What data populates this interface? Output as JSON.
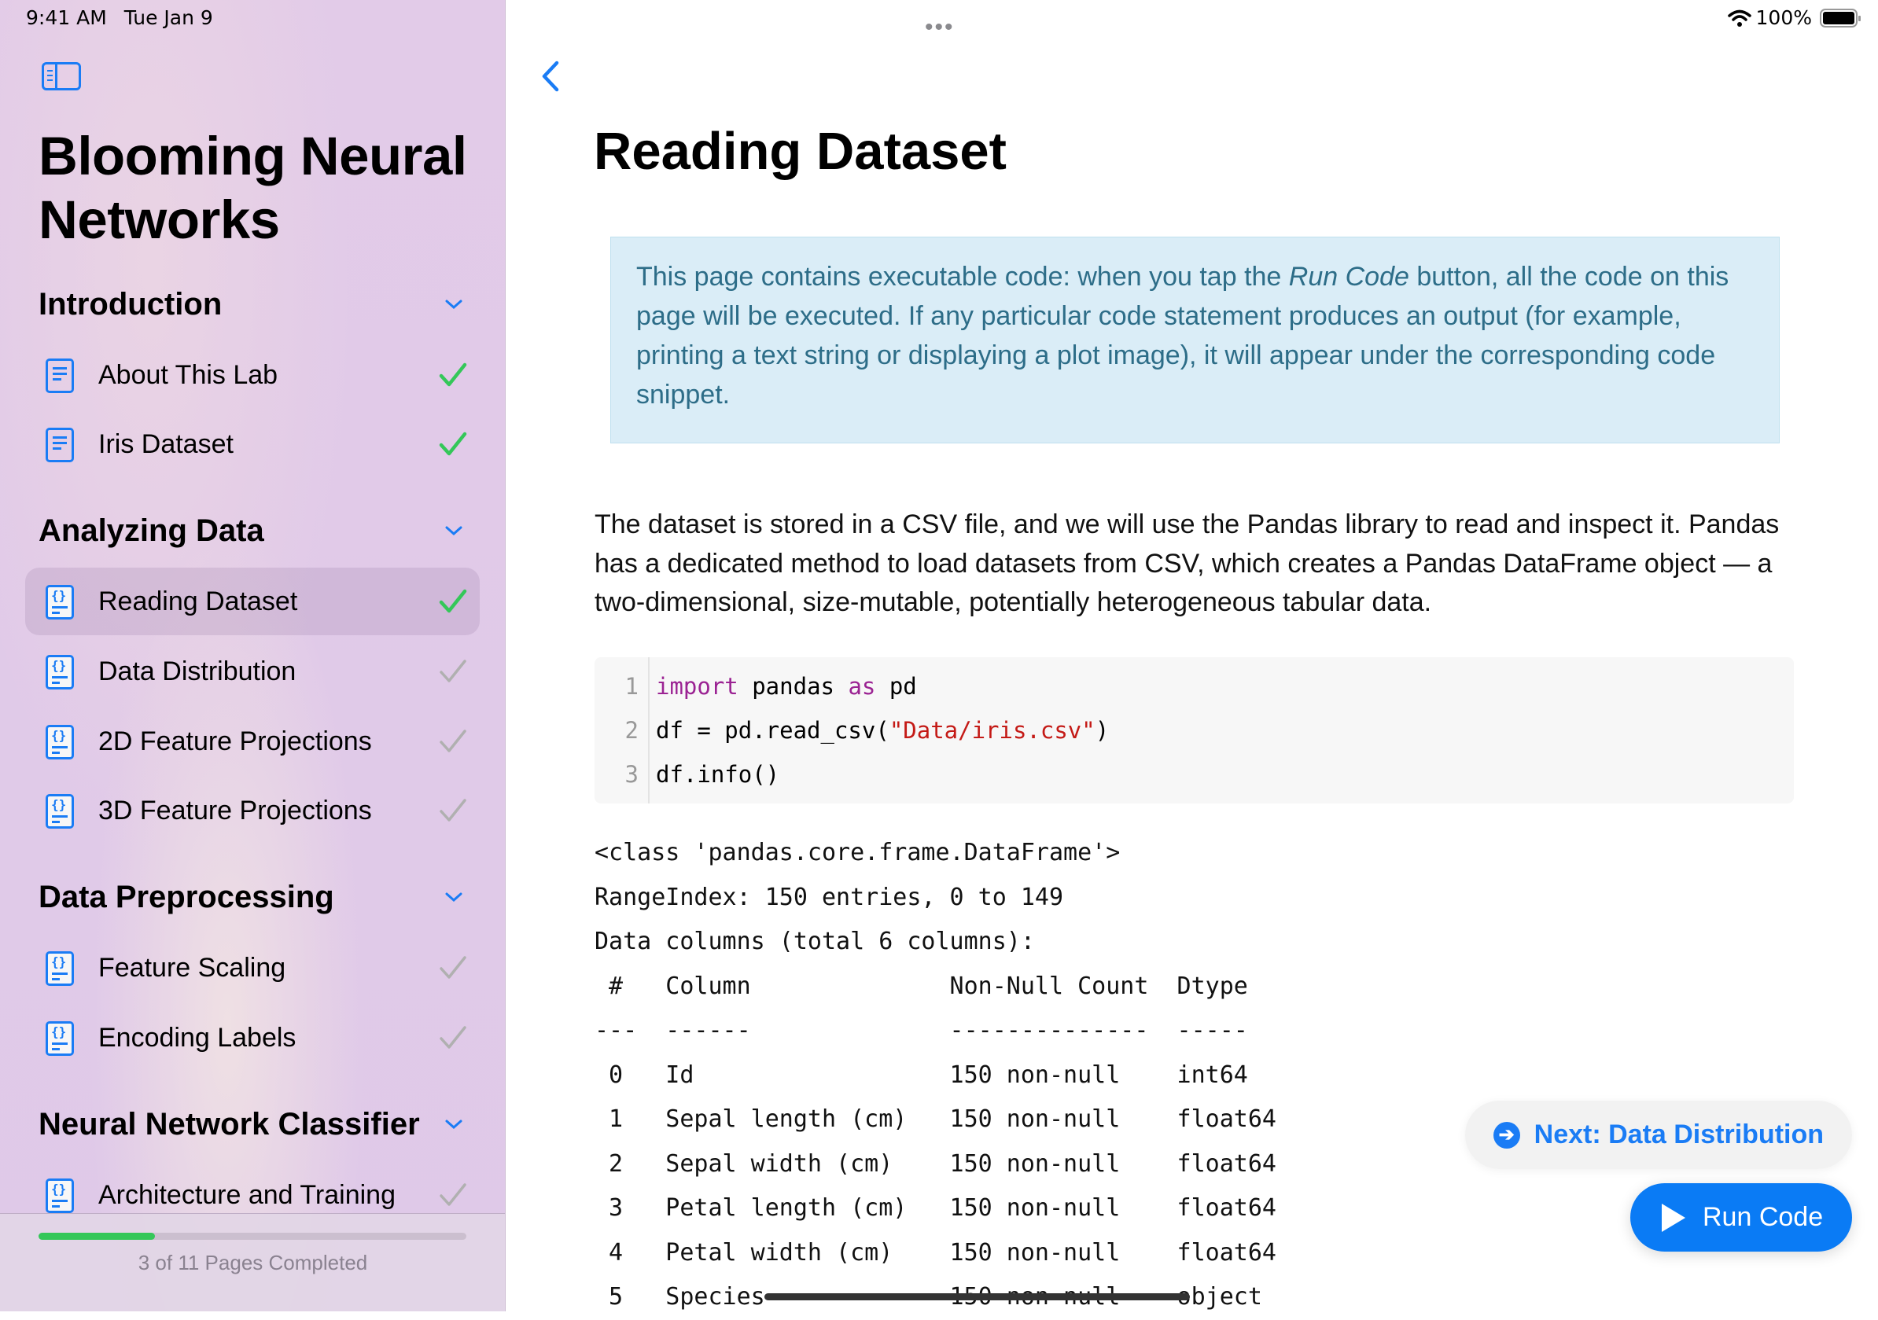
{
  "status_bar": {
    "time": "9:41 AM",
    "date": "Tue Jan 9",
    "battery": "100%",
    "battery_level": 1.0
  },
  "sidebar": {
    "title_line1": "Blooming Neural",
    "title_line2": "Networks",
    "sections": [
      {
        "title": "Introduction",
        "items": [
          {
            "label": "About This Lab",
            "icon": "doc",
            "done": true
          },
          {
            "label": "Iris Dataset",
            "icon": "doc",
            "done": true
          }
        ]
      },
      {
        "title": "Analyzing Data",
        "items": [
          {
            "label": "Reading Dataset",
            "icon": "code",
            "done": true,
            "selected": true
          },
          {
            "label": "Data Distribution",
            "icon": "code",
            "done": false
          },
          {
            "label": "2D Feature Projections",
            "icon": "code",
            "done": false
          },
          {
            "label": "3D Feature Projections",
            "icon": "code",
            "done": false
          }
        ]
      },
      {
        "title": "Data Preprocessing",
        "items": [
          {
            "label": "Feature Scaling",
            "icon": "code",
            "done": false
          },
          {
            "label": "Encoding Labels",
            "icon": "code",
            "done": false
          }
        ]
      },
      {
        "title": "Neural Network Classifier",
        "items": [
          {
            "label": "Architecture and Training",
            "icon": "code",
            "done": false
          }
        ]
      }
    ],
    "progress": {
      "completed": 3,
      "total": 11,
      "label": "3 of 11 Pages Completed"
    }
  },
  "main": {
    "title": "Reading Dataset",
    "note_before": "This page contains executable code: when you tap the ",
    "note_em": "Run Code",
    "note_after": " button, all the code on this page will be executed. If any particular code statement produces an output (for example, printing a text string or displaying a plot image), it will appear under the corresponding code snippet.",
    "paragraph": "The dataset is stored in a CSV file, and we will use the Pandas library to read and inspect it. Pandas has a dedicated method to load datasets from CSV, which creates a Pandas DataFrame object — a two-dimensional, size-mutable, potentially heterogeneous tabular data.",
    "code": {
      "line_numbers": [
        "1",
        "2",
        "3"
      ],
      "l1_kw1": "import",
      "l1_mid": " pandas ",
      "l1_kw2": "as",
      "l1_end": " pd",
      "l2_start": "df = pd.read_csv(",
      "l2_str": "\"Data/iris.csv\"",
      "l2_end": ")",
      "l3": "df.info()"
    },
    "output": [
      "<class 'pandas.core.frame.DataFrame'>",
      "RangeIndex: 150 entries, 0 to 149",
      "Data columns (total 6 columns):",
      " #   Column              Non-Null Count  Dtype",
      "---  ------              --------------  -----",
      " 0   Id                  150 non-null    int64",
      " 1   Sepal length (cm)   150 non-null    float64",
      " 2   Sepal width (cm)    150 non-null    float64",
      " 3   Petal length (cm)   150 non-null    float64",
      " 4   Petal width (cm)    150 non-null    float64",
      " 5   Species             150 non-null    object"
    ],
    "next_button": "Next: Data Distribution",
    "run_button": "Run Code"
  },
  "colors": {
    "accent": "#1a7cf5",
    "done": "#34c759",
    "pending": "#b0b0b0",
    "keyword": "#9b2393",
    "string": "#c41a16"
  }
}
